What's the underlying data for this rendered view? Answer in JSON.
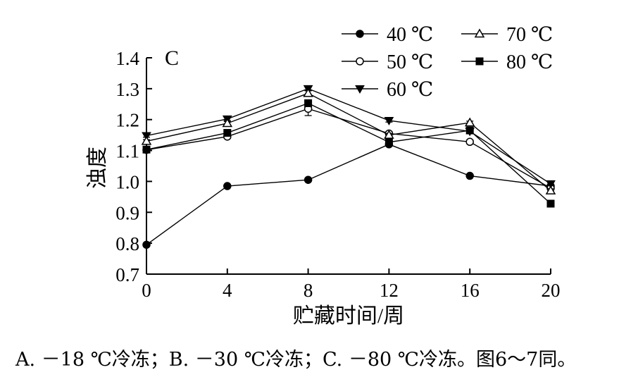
{
  "chart_data": {
    "type": "line",
    "panel_label": "C",
    "xlabel": "贮藏时间/周",
    "ylabel": "浊度",
    "x": [
      0,
      4,
      8,
      12,
      16,
      20
    ],
    "x_ticks": [
      "0",
      "4",
      "8",
      "12",
      "16",
      "20"
    ],
    "ylim": [
      0.7,
      1.4
    ],
    "y_ticks": [
      "0.7",
      "0.8",
      "0.9",
      "1.0",
      "1.1",
      "1.2",
      "1.3",
      "1.4"
    ],
    "grid": false,
    "legend_position": "top-right",
    "series": [
      {
        "name": "40 ℃",
        "marker": "circle-filled",
        "values": [
          0.795,
          0.985,
          1.005,
          1.12,
          1.018,
          0.985
        ],
        "errors": [
          0.005,
          0.004,
          0.004,
          0.006,
          0.004,
          0.004
        ]
      },
      {
        "name": "50 ℃",
        "marker": "circle-open",
        "values": [
          1.102,
          1.145,
          1.235,
          1.155,
          1.128,
          0.978
        ],
        "errors": [
          0.005,
          0.006,
          0.022,
          0.006,
          0.006,
          0.006
        ]
      },
      {
        "name": "60 ℃",
        "marker": "triangle-down-filled",
        "values": [
          1.148,
          1.202,
          1.3,
          1.197,
          1.162,
          0.992
        ],
        "errors": [
          0.005,
          0.005,
          0.006,
          0.005,
          0.005,
          0.005
        ]
      },
      {
        "name": "70 ℃",
        "marker": "triangle-up-open",
        "values": [
          1.13,
          1.188,
          1.285,
          1.15,
          1.19,
          0.97
        ],
        "errors": [
          0.005,
          0.006,
          0.008,
          0.005,
          0.005,
          0.006
        ]
      },
      {
        "name": "80 ℃",
        "marker": "square-filled",
        "values": [
          1.103,
          1.157,
          1.253,
          1.127,
          1.165,
          0.928
        ],
        "errors": [
          0.005,
          0.006,
          0.006,
          0.005,
          0.006,
          0.006
        ]
      }
    ]
  },
  "caption": "A. －18 ℃冷冻；B. －30 ℃冷冻；C. －80 ℃冷冻。图6～7同。"
}
